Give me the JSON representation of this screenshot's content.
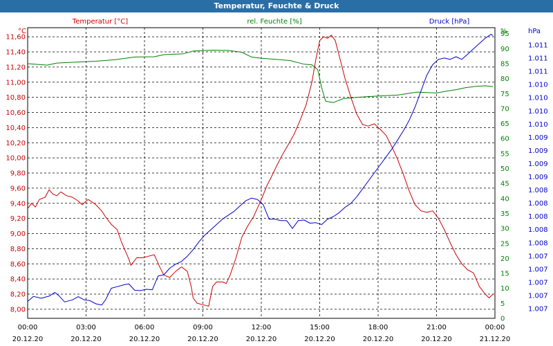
{
  "window": {
    "title": "Temperatur, Feuchte & Druck"
  },
  "colors": {
    "temperature": "#cc0000",
    "humidity": "#008000",
    "pressure": "#0000cc",
    "grid": "#000000",
    "titlebar": "#2a6ea6",
    "x_axis_text": "#000000"
  },
  "chart_data": {
    "type": "line",
    "title": "Temperatur, Feuchte & Druck",
    "grid": true,
    "axes": {
      "left": {
        "unit": "°C",
        "ticks": [
          "8,00",
          "8,20",
          "8,40",
          "8,60",
          "8,80",
          "9,00",
          "9,20",
          "9,40",
          "9,60",
          "9,80",
          "10,00",
          "10,20",
          "10,40",
          "10,60",
          "10,80",
          "11,00",
          "11,20",
          "11,40",
          "11,60"
        ],
        "range": [
          7.88,
          11.72
        ]
      },
      "middle": {
        "unit": "%",
        "ticks": [
          "0",
          "5",
          "10",
          "15",
          "20",
          "25",
          "30",
          "35",
          "40",
          "45",
          "50",
          "55",
          "60",
          "65",
          "70",
          "75",
          "80",
          "85",
          "90",
          "95"
        ],
        "range": [
          0,
          97
        ]
      },
      "right": {
        "unit": "hPa",
        "ticks": [
          "1.007",
          "1.007",
          "1.007",
          "1.007",
          "1.007",
          "1.008",
          "1.008",
          "1.008",
          "1.008",
          "1.008",
          "1.009",
          "1.009",
          "1.009",
          "1.009",
          "1.010",
          "1.010",
          "1.010",
          "1.010",
          "1.011",
          "1.011",
          "1.011"
        ]
      }
    },
    "x_ticks": [
      {
        "time": "00:00",
        "date": "20.12.20"
      },
      {
        "time": "03:00",
        "date": "20.12.20"
      },
      {
        "time": "06:00",
        "date": "20.12.20"
      },
      {
        "time": "09:00",
        "date": "20.12.20"
      },
      {
        "time": "12:00",
        "date": "20.12.20"
      },
      {
        "time": "15:00",
        "date": "20.12.20"
      },
      {
        "time": "18:00",
        "date": "20.12.20"
      },
      {
        "time": "21:00",
        "date": "20.12.20"
      },
      {
        "time": "00:00",
        "date": "21.12.20"
      }
    ],
    "series": [
      {
        "name": "Temperatur [°C]",
        "key": "temperature",
        "axis": "left",
        "points": [
          [
            0,
            9.33
          ],
          [
            0.2,
            9.4
          ],
          [
            0.4,
            9.35
          ],
          [
            0.6,
            9.45
          ],
          [
            0.9,
            9.48
          ],
          [
            1.1,
            9.58
          ],
          [
            1.3,
            9.52
          ],
          [
            1.5,
            9.5
          ],
          [
            1.7,
            9.55
          ],
          [
            2.0,
            9.5
          ],
          [
            2.3,
            9.48
          ],
          [
            2.6,
            9.43
          ],
          [
            2.8,
            9.38
          ],
          [
            3.1,
            9.45
          ],
          [
            3.3,
            9.42
          ],
          [
            3.5,
            9.38
          ],
          [
            3.8,
            9.3
          ],
          [
            4.0,
            9.22
          ],
          [
            4.3,
            9.12
          ],
          [
            4.6,
            9.05
          ],
          [
            4.8,
            8.9
          ],
          [
            5.0,
            8.78
          ],
          [
            5.2,
            8.66
          ],
          [
            5.3,
            8.58
          ],
          [
            5.6,
            8.68
          ],
          [
            5.9,
            8.68
          ],
          [
            6.2,
            8.7
          ],
          [
            6.5,
            8.72
          ],
          [
            6.8,
            8.55
          ],
          [
            7.0,
            8.45
          ],
          [
            7.3,
            8.42
          ],
          [
            7.6,
            8.5
          ],
          [
            7.9,
            8.56
          ],
          [
            8.2,
            8.5
          ],
          [
            8.3,
            8.4
          ],
          [
            8.4,
            8.3
          ],
          [
            8.5,
            8.15
          ],
          [
            8.7,
            8.08
          ],
          [
            9.0,
            8.06
          ],
          [
            9.3,
            8.04
          ],
          [
            9.5,
            8.3
          ],
          [
            9.7,
            8.36
          ],
          [
            10.0,
            8.36
          ],
          [
            10.2,
            8.34
          ],
          [
            10.4,
            8.45
          ],
          [
            10.7,
            8.68
          ],
          [
            11.0,
            8.95
          ],
          [
            11.3,
            9.1
          ],
          [
            11.6,
            9.22
          ],
          [
            12.0,
            9.45
          ],
          [
            12.3,
            9.64
          ],
          [
            12.5,
            9.74
          ],
          [
            12.8,
            9.9
          ],
          [
            13.1,
            10.05
          ],
          [
            13.4,
            10.18
          ],
          [
            13.7,
            10.32
          ],
          [
            14.0,
            10.5
          ],
          [
            14.3,
            10.7
          ],
          [
            14.6,
            11.0
          ],
          [
            14.8,
            11.3
          ],
          [
            15.0,
            11.55
          ],
          [
            15.2,
            11.6
          ],
          [
            15.4,
            11.58
          ],
          [
            15.6,
            11.62
          ],
          [
            15.8,
            11.55
          ],
          [
            16.0,
            11.35
          ],
          [
            16.3,
            11.05
          ],
          [
            16.6,
            10.8
          ],
          [
            16.9,
            10.58
          ],
          [
            17.2,
            10.44
          ],
          [
            17.5,
            10.42
          ],
          [
            17.8,
            10.45
          ],
          [
            18.1,
            10.38
          ],
          [
            18.4,
            10.3
          ],
          [
            18.7,
            10.15
          ],
          [
            19.0,
            9.98
          ],
          [
            19.3,
            9.78
          ],
          [
            19.6,
            9.56
          ],
          [
            19.9,
            9.38
          ],
          [
            20.2,
            9.3
          ],
          [
            20.5,
            9.28
          ],
          [
            20.8,
            9.3
          ],
          [
            21.1,
            9.2
          ],
          [
            21.4,
            9.05
          ],
          [
            21.7,
            8.88
          ],
          [
            22.0,
            8.72
          ],
          [
            22.3,
            8.6
          ],
          [
            22.6,
            8.52
          ],
          [
            22.9,
            8.48
          ],
          [
            23.2,
            8.3
          ],
          [
            23.5,
            8.2
          ],
          [
            23.7,
            8.15
          ],
          [
            23.9,
            8.2
          ]
        ]
      },
      {
        "name": "rel. Feuchte [%]",
        "key": "humidity",
        "axis": "middle",
        "points": [
          [
            0,
            85
          ],
          [
            1.0,
            84.5
          ],
          [
            1.5,
            85.2
          ],
          [
            2.5,
            85.5
          ],
          [
            3.5,
            85.8
          ],
          [
            4.5,
            86.3
          ],
          [
            5.5,
            87.2
          ],
          [
            6.5,
            87.3
          ],
          [
            7.0,
            88.0
          ],
          [
            8.0,
            88.3
          ],
          [
            8.5,
            89.2
          ],
          [
            9.5,
            89.5
          ],
          [
            10.3,
            89.4
          ],
          [
            11.0,
            88.8
          ],
          [
            11.5,
            87.2
          ],
          [
            12.0,
            86.8
          ],
          [
            12.8,
            86.4
          ],
          [
            13.5,
            86.0
          ],
          [
            14.2,
            84.8
          ],
          [
            14.6,
            84.6
          ],
          [
            14.9,
            83.0
          ],
          [
            15.1,
            77.0
          ],
          [
            15.3,
            72.5
          ],
          [
            15.7,
            72.0
          ],
          [
            16.2,
            73.3
          ],
          [
            17.0,
            73.8
          ],
          [
            18.0,
            74.2
          ],
          [
            19.0,
            74.5
          ],
          [
            20.0,
            75.5
          ],
          [
            21.0,
            75.2
          ],
          [
            21.5,
            75.8
          ],
          [
            22.0,
            76.3
          ],
          [
            22.5,
            77.0
          ],
          [
            23.0,
            77.4
          ],
          [
            23.5,
            77.6
          ],
          [
            23.9,
            77.3
          ]
        ]
      },
      {
        "name": "Druck [hPa]",
        "key": "pressure",
        "axis": "right",
        "points": [
          [
            0,
            0.64
          ],
          [
            0.3,
            0.83
          ],
          [
            0.7,
            0.76
          ],
          [
            1.1,
            0.84
          ],
          [
            1.4,
            0.98
          ],
          [
            1.6,
            0.86
          ],
          [
            1.9,
            0.62
          ],
          [
            2.3,
            0.7
          ],
          [
            2.6,
            0.82
          ],
          [
            2.9,
            0.7
          ],
          [
            3.2,
            0.67
          ],
          [
            3.5,
            0.55
          ],
          [
            3.8,
            0.5
          ],
          [
            4.0,
            0.7
          ],
          [
            4.3,
            1.14
          ],
          [
            4.6,
            1.2
          ],
          [
            5.0,
            1.28
          ],
          [
            5.2,
            1.3
          ],
          [
            5.5,
            1.06
          ],
          [
            5.8,
            1.05
          ],
          [
            6.1,
            1.1
          ],
          [
            6.4,
            1.08
          ],
          [
            6.7,
            1.6
          ],
          [
            7.0,
            1.65
          ],
          [
            7.3,
            1.9
          ],
          [
            7.6,
            2.05
          ],
          [
            7.9,
            2.15
          ],
          [
            8.2,
            2.35
          ],
          [
            8.5,
            2.6
          ],
          [
            8.8,
            2.9
          ],
          [
            9.1,
            3.15
          ],
          [
            9.4,
            3.35
          ],
          [
            9.7,
            3.55
          ],
          [
            10.0,
            3.75
          ],
          [
            10.3,
            3.9
          ],
          [
            10.6,
            4.05
          ],
          [
            10.9,
            4.25
          ],
          [
            11.2,
            4.45
          ],
          [
            11.5,
            4.55
          ],
          [
            11.8,
            4.5
          ],
          [
            12.1,
            4.3
          ],
          [
            12.4,
            3.75
          ],
          [
            12.7,
            3.75
          ],
          [
            13.0,
            3.7
          ],
          [
            13.3,
            3.7
          ],
          [
            13.6,
            3.4
          ],
          [
            13.9,
            3.7
          ],
          [
            14.2,
            3.72
          ],
          [
            14.5,
            3.6
          ],
          [
            14.8,
            3.62
          ],
          [
            15.1,
            3.55
          ],
          [
            15.4,
            3.75
          ],
          [
            15.7,
            3.85
          ],
          [
            16.0,
            4.0
          ],
          [
            16.3,
            4.2
          ],
          [
            16.6,
            4.35
          ],
          [
            16.9,
            4.6
          ],
          [
            17.2,
            4.9
          ],
          [
            17.5,
            5.2
          ],
          [
            17.8,
            5.5
          ],
          [
            18.1,
            5.8
          ],
          [
            18.4,
            6.1
          ],
          [
            18.7,
            6.4
          ],
          [
            19.0,
            6.75
          ],
          [
            19.3,
            7.1
          ],
          [
            19.6,
            7.5
          ],
          [
            19.9,
            8.0
          ],
          [
            20.2,
            8.6
          ],
          [
            20.5,
            9.2
          ],
          [
            20.8,
            9.6
          ],
          [
            21.1,
            9.8
          ],
          [
            21.4,
            9.85
          ],
          [
            21.7,
            9.8
          ],
          [
            22.0,
            9.9
          ],
          [
            22.3,
            9.8
          ],
          [
            22.6,
            10.0
          ],
          [
            22.9,
            10.2
          ],
          [
            23.2,
            10.4
          ],
          [
            23.5,
            10.6
          ],
          [
            23.8,
            10.75
          ],
          [
            23.9,
            10.7
          ]
        ]
      }
    ]
  }
}
